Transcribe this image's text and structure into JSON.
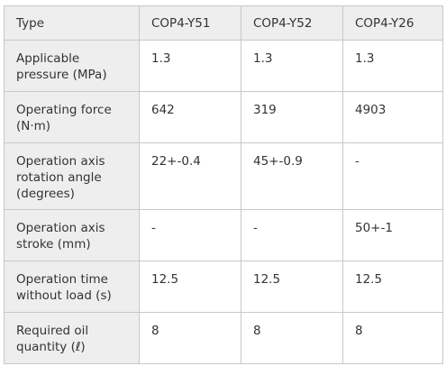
{
  "table": {
    "header": {
      "label": "Type",
      "models": [
        "COP4-Y51",
        "COP4-Y52",
        "COP4-Y26"
      ]
    },
    "rows": [
      {
        "label": "Applicable pressure (MPa)",
        "values": [
          "1.3",
          "1.3",
          "1.3"
        ]
      },
      {
        "label": "Operating force (N·m)",
        "values": [
          "642",
          "319",
          "4903"
        ]
      },
      {
        "label": "Operation axis rotation angle (degrees)",
        "values": [
          "22+-0.4",
          "45+-0.9",
          "-"
        ]
      },
      {
        "label": "Operation axis stroke (mm)",
        "values": [
          "-",
          "-",
          "50+-1"
        ]
      },
      {
        "label": "Operation time without load (s)",
        "values": [
          "12.5",
          "12.5",
          "12.5"
        ]
      },
      {
        "label": "Required oil quantity (ℓ)",
        "values": [
          "8",
          "8",
          "8"
        ]
      }
    ]
  }
}
